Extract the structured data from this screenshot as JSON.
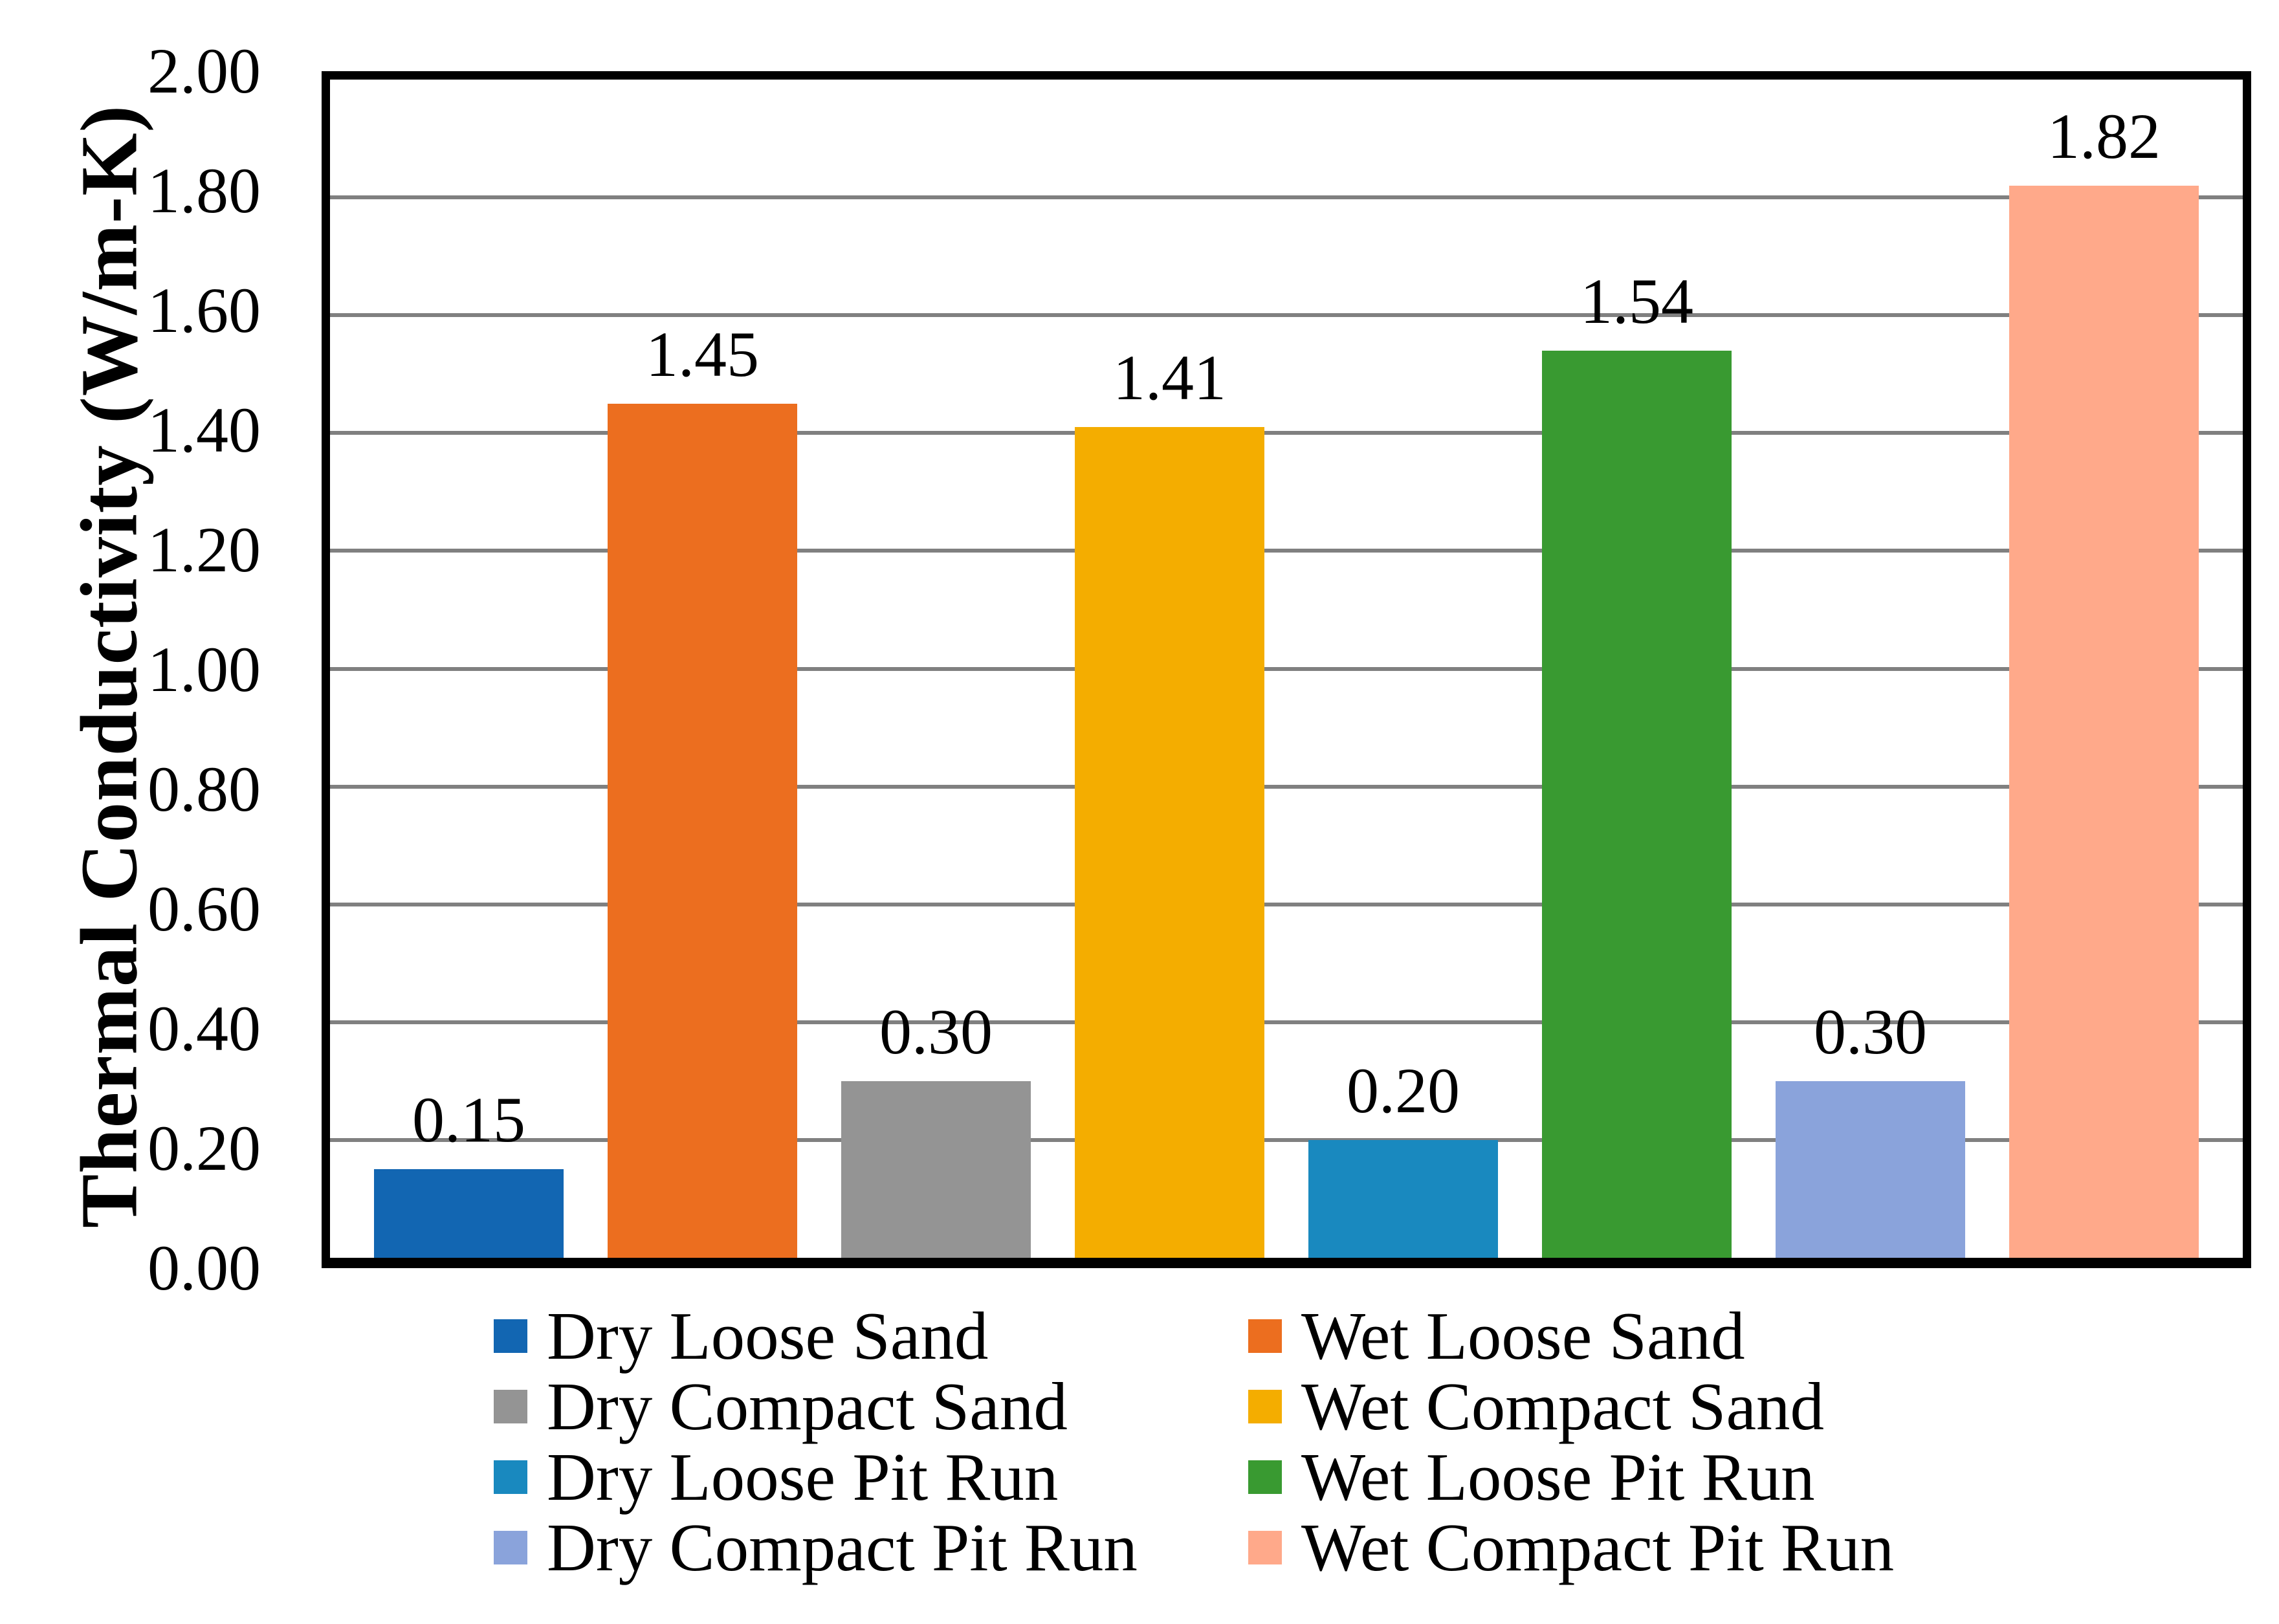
{
  "chart_data": {
    "type": "bar",
    "title": "",
    "xlabel": "",
    "ylabel": "Thermal Conductivity (W/m-K)",
    "ylim": [
      0,
      2.0
    ],
    "ytick_step": 0.2,
    "ytick_labels": [
      "0.00",
      "0.20",
      "0.40",
      "0.60",
      "0.80",
      "1.00",
      "1.20",
      "1.40",
      "1.60",
      "1.80",
      "2.00"
    ],
    "grid": true,
    "gridline_color": "#808080",
    "axis_color": "#000000",
    "background_color": "#ffffff",
    "legend_position": "bottom",
    "legend_columns": 2,
    "bars": [
      {
        "name": "Dry Loose Sand",
        "value": 0.15,
        "label": "0.15",
        "color": "#1266B2"
      },
      {
        "name": "Wet Loose Sand",
        "value": 1.45,
        "label": "1.45",
        "color": "#EC6E1F"
      },
      {
        "name": "Dry Compact Sand",
        "value": 0.3,
        "label": "0.30",
        "color": "#949494"
      },
      {
        "name": "Wet Compact Sand",
        "value": 1.41,
        "label": "1.41",
        "color": "#F4AD00"
      },
      {
        "name": "Dry Loose Pit Run",
        "value": 0.2,
        "label": "0.20",
        "color": "#1989BF"
      },
      {
        "name": "Wet Loose Pit Run",
        "value": 1.54,
        "label": "1.54",
        "color": "#399A31"
      },
      {
        "name": "Dry Compact Pit Run",
        "value": 0.3,
        "label": "0.30",
        "color": "#8AA3DB"
      },
      {
        "name": "Wet Compact Pit Run",
        "value": 1.82,
        "label": "1.82",
        "color": "#FFA98A"
      }
    ]
  }
}
